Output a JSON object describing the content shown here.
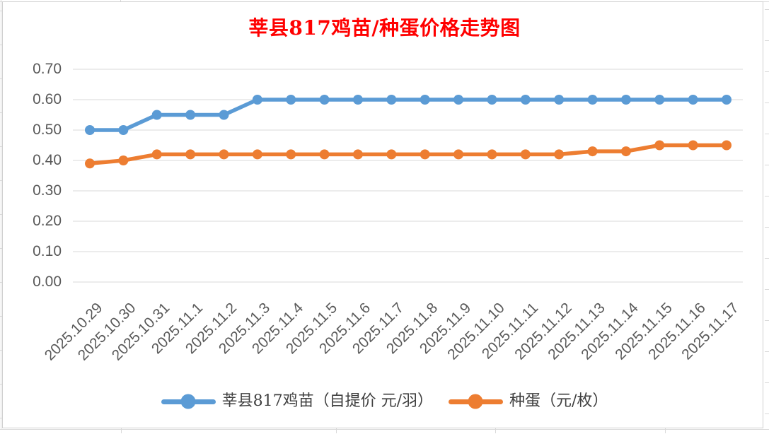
{
  "chart_data": {
    "type": "line",
    "title": "莘县817鸡苗/种蛋价格走势图",
    "title_color": "#FF0000",
    "xlabel": "",
    "ylabel": "",
    "categories": [
      "2025.10.29",
      "2025.10.30",
      "2025.10.31",
      "2025.11.1",
      "2025.11.2",
      "2025.11.3",
      "2025.11.4",
      "2025.11.5",
      "2025.11.6",
      "2025.11.7",
      "2025.11.8",
      "2025.11.9",
      "2025.11.10",
      "2025.11.11",
      "2025.11.12",
      "2025.11.13",
      "2025.11.14",
      "2025.11.15",
      "2025.11.16",
      "2025.11.17"
    ],
    "series": [
      {
        "name": "莘县817鸡苗（自提价 元/羽）",
        "color": "#5B9BD5",
        "values": [
          0.5,
          0.5,
          0.55,
          0.55,
          0.55,
          0.6,
          0.6,
          0.6,
          0.6,
          0.6,
          0.6,
          0.6,
          0.6,
          0.6,
          0.6,
          0.6,
          0.6,
          0.6,
          0.6,
          0.6
        ]
      },
      {
        "name": "种蛋（元/枚）",
        "color": "#ED7D31",
        "values": [
          0.39,
          0.4,
          0.42,
          0.42,
          0.42,
          0.42,
          0.42,
          0.42,
          0.42,
          0.42,
          0.42,
          0.42,
          0.42,
          0.42,
          0.42,
          0.43,
          0.43,
          0.45,
          0.45,
          0.45
        ]
      }
    ],
    "ylim": [
      0,
      0.7
    ],
    "ytick_step": 0.1,
    "yticks": [
      "0.00",
      "0.10",
      "0.20",
      "0.30",
      "0.40",
      "0.50",
      "0.60",
      "0.70"
    ],
    "grid": "horizontal",
    "legend_position": "bottom",
    "marker": "circle"
  },
  "colors": {
    "grid": "#D9D9D9",
    "axis_text": "#595959",
    "legend_text": "#404040",
    "canvas_border": "#CFCFCF"
  }
}
